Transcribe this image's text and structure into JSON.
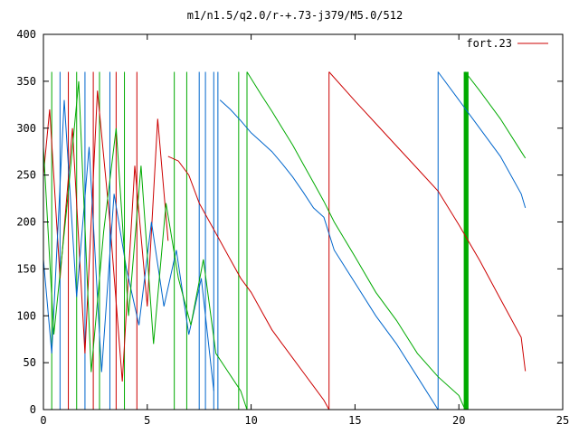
{
  "chart_data": {
    "type": "line",
    "title": "m1/n1.5/q2.0/r-+.73-j379/M5.0/512",
    "xlabel": "",
    "ylabel": "",
    "xlim": [
      0,
      25
    ],
    "ylim": [
      0,
      400
    ],
    "x_ticks": [
      0,
      5,
      10,
      15,
      20,
      25
    ],
    "y_ticks": [
      0,
      50,
      100,
      150,
      200,
      250,
      300,
      350,
      400
    ],
    "grid": false,
    "legend": {
      "position": "top-right",
      "entries": [
        {
          "label": "fort.23",
          "color": "#cc0000"
        }
      ]
    },
    "series": [
      {
        "color": "#cc0000",
        "segments": [
          {
            "x": [
              0.0,
              0.3,
              0.8,
              1.4,
              2.0,
              2.6,
              3.2,
              3.8,
              4.4,
              5.0,
              5.5,
              6.0
            ],
            "y": [
              250,
              320,
              140,
              300,
              60,
              340,
              200,
              30,
              260,
              110,
              310,
              180
            ]
          },
          {
            "x": [
              6.0,
              6.5,
              7.0,
              7.5,
              8.0,
              8.5,
              9.0,
              9.5,
              10.0,
              10.5,
              11.0,
              11.5,
              12.0,
              12.5,
              13.0,
              13.5,
              13.75
            ],
            "y": [
              270,
              265,
              250,
              220,
              200,
              180,
              160,
              140,
              125,
              105,
              85,
              70,
              55,
              40,
              25,
              10,
              0
            ]
          },
          {
            "x": [
              13.75,
              15.0,
              16.0,
              17.0,
              18.0,
              19.0,
              20.0,
              21.0,
              22.0,
              23.0,
              23.2
            ],
            "y": [
              360,
              329,
              305,
              281,
              257,
              233,
              197,
              159,
              118,
              77,
              41
            ]
          }
        ]
      },
      {
        "color": "#0066cc",
        "segments": [
          {
            "x": [
              0.0,
              0.4,
              1.0,
              1.6,
              2.2,
              2.8,
              3.4,
              4.0,
              4.6,
              5.2,
              5.8,
              6.4,
              7.0,
              7.6,
              8.2
            ],
            "y": [
              160,
              60,
              330,
              120,
              280,
              40,
              230,
              150,
              90,
              200,
              110,
              170,
              80,
              140,
              20
            ]
          },
          {
            "x": [
              8.5,
              9.0,
              9.5,
              10.0,
              10.5,
              11.0,
              11.5,
              12.0,
              12.5,
              13.0,
              13.5,
              14.0,
              15.0,
              16.0,
              17.0,
              18.0,
              19.0
            ],
            "y": [
              330,
              320,
              308,
              295,
              285,
              275,
              262,
              248,
              232,
              215,
              205,
              170,
              135,
              100,
              70,
              35,
              0
            ]
          },
          {
            "x": [
              19.0,
              20.0,
              21.0,
              22.0,
              23.0,
              23.2
            ],
            "y": [
              360,
              330,
              300,
              270,
              230,
              215
            ]
          }
        ]
      },
      {
        "color": "#00aa00",
        "segments": [
          {
            "x": [
              0.0,
              0.5,
              1.1,
              1.7,
              2.3,
              2.9,
              3.5,
              4.1,
              4.7,
              5.3,
              5.9,
              6.5,
              7.1,
              7.7,
              8.3,
              8.9,
              9.5,
              9.8
            ],
            "y": [
              280,
              80,
              210,
              350,
              40,
              190,
              300,
              100,
              260,
              70,
              220,
              140,
              90,
              160,
              60,
              40,
              20,
              0
            ]
          },
          {
            "x": [
              9.8,
              10.5,
              11.0,
              11.5,
              12.0,
              12.5,
              13.0,
              13.5,
              14.0,
              15.0,
              16.0,
              17.0,
              18.0,
              19.0,
              20.0,
              20.3
            ],
            "y": [
              360,
              335,
              318,
              300,
              282,
              262,
              242,
              222,
              200,
              163,
              125,
              95,
              60,
              35,
              15,
              0
            ]
          },
          {
            "x": [
              20.3,
              21.0,
              22.0,
              23.0,
              23.2
            ],
            "y": [
              360,
              340,
              310,
              275,
              268
            ]
          }
        ]
      }
    ],
    "vertical_lines": [
      {
        "x": 13.75,
        "color": "#cc0000"
      },
      {
        "x": 19.0,
        "color": "#0066cc"
      },
      {
        "x": 20.3,
        "color": "#00aa00",
        "bold": true
      },
      {
        "x": 20.4,
        "color": "#00aa00",
        "bold": true
      },
      {
        "x": 9.8,
        "color": "#00aa00"
      },
      {
        "x": 9.4,
        "color": "#00aa00"
      },
      {
        "x": 8.4,
        "color": "#0066cc"
      },
      {
        "x": 8.2,
        "color": "#0066cc"
      },
      {
        "x": 7.8,
        "color": "#0066cc"
      },
      {
        "x": 7.5,
        "color": "#0066cc"
      },
      {
        "x": 6.9,
        "color": "#00aa00"
      },
      {
        "x": 6.3,
        "color": "#00aa00"
      },
      {
        "x": 4.5,
        "color": "#cc0000"
      },
      {
        "x": 3.9,
        "color": "#00aa00"
      },
      {
        "x": 3.5,
        "color": "#cc0000"
      },
      {
        "x": 3.2,
        "color": "#0066cc"
      },
      {
        "x": 2.7,
        "color": "#00aa00"
      },
      {
        "x": 2.4,
        "color": "#cc0000"
      },
      {
        "x": 2.0,
        "color": "#0066cc"
      },
      {
        "x": 1.6,
        "color": "#00aa00"
      },
      {
        "x": 1.2,
        "color": "#cc0000"
      },
      {
        "x": 0.8,
        "color": "#0066cc"
      },
      {
        "x": 0.4,
        "color": "#00aa00"
      }
    ]
  }
}
